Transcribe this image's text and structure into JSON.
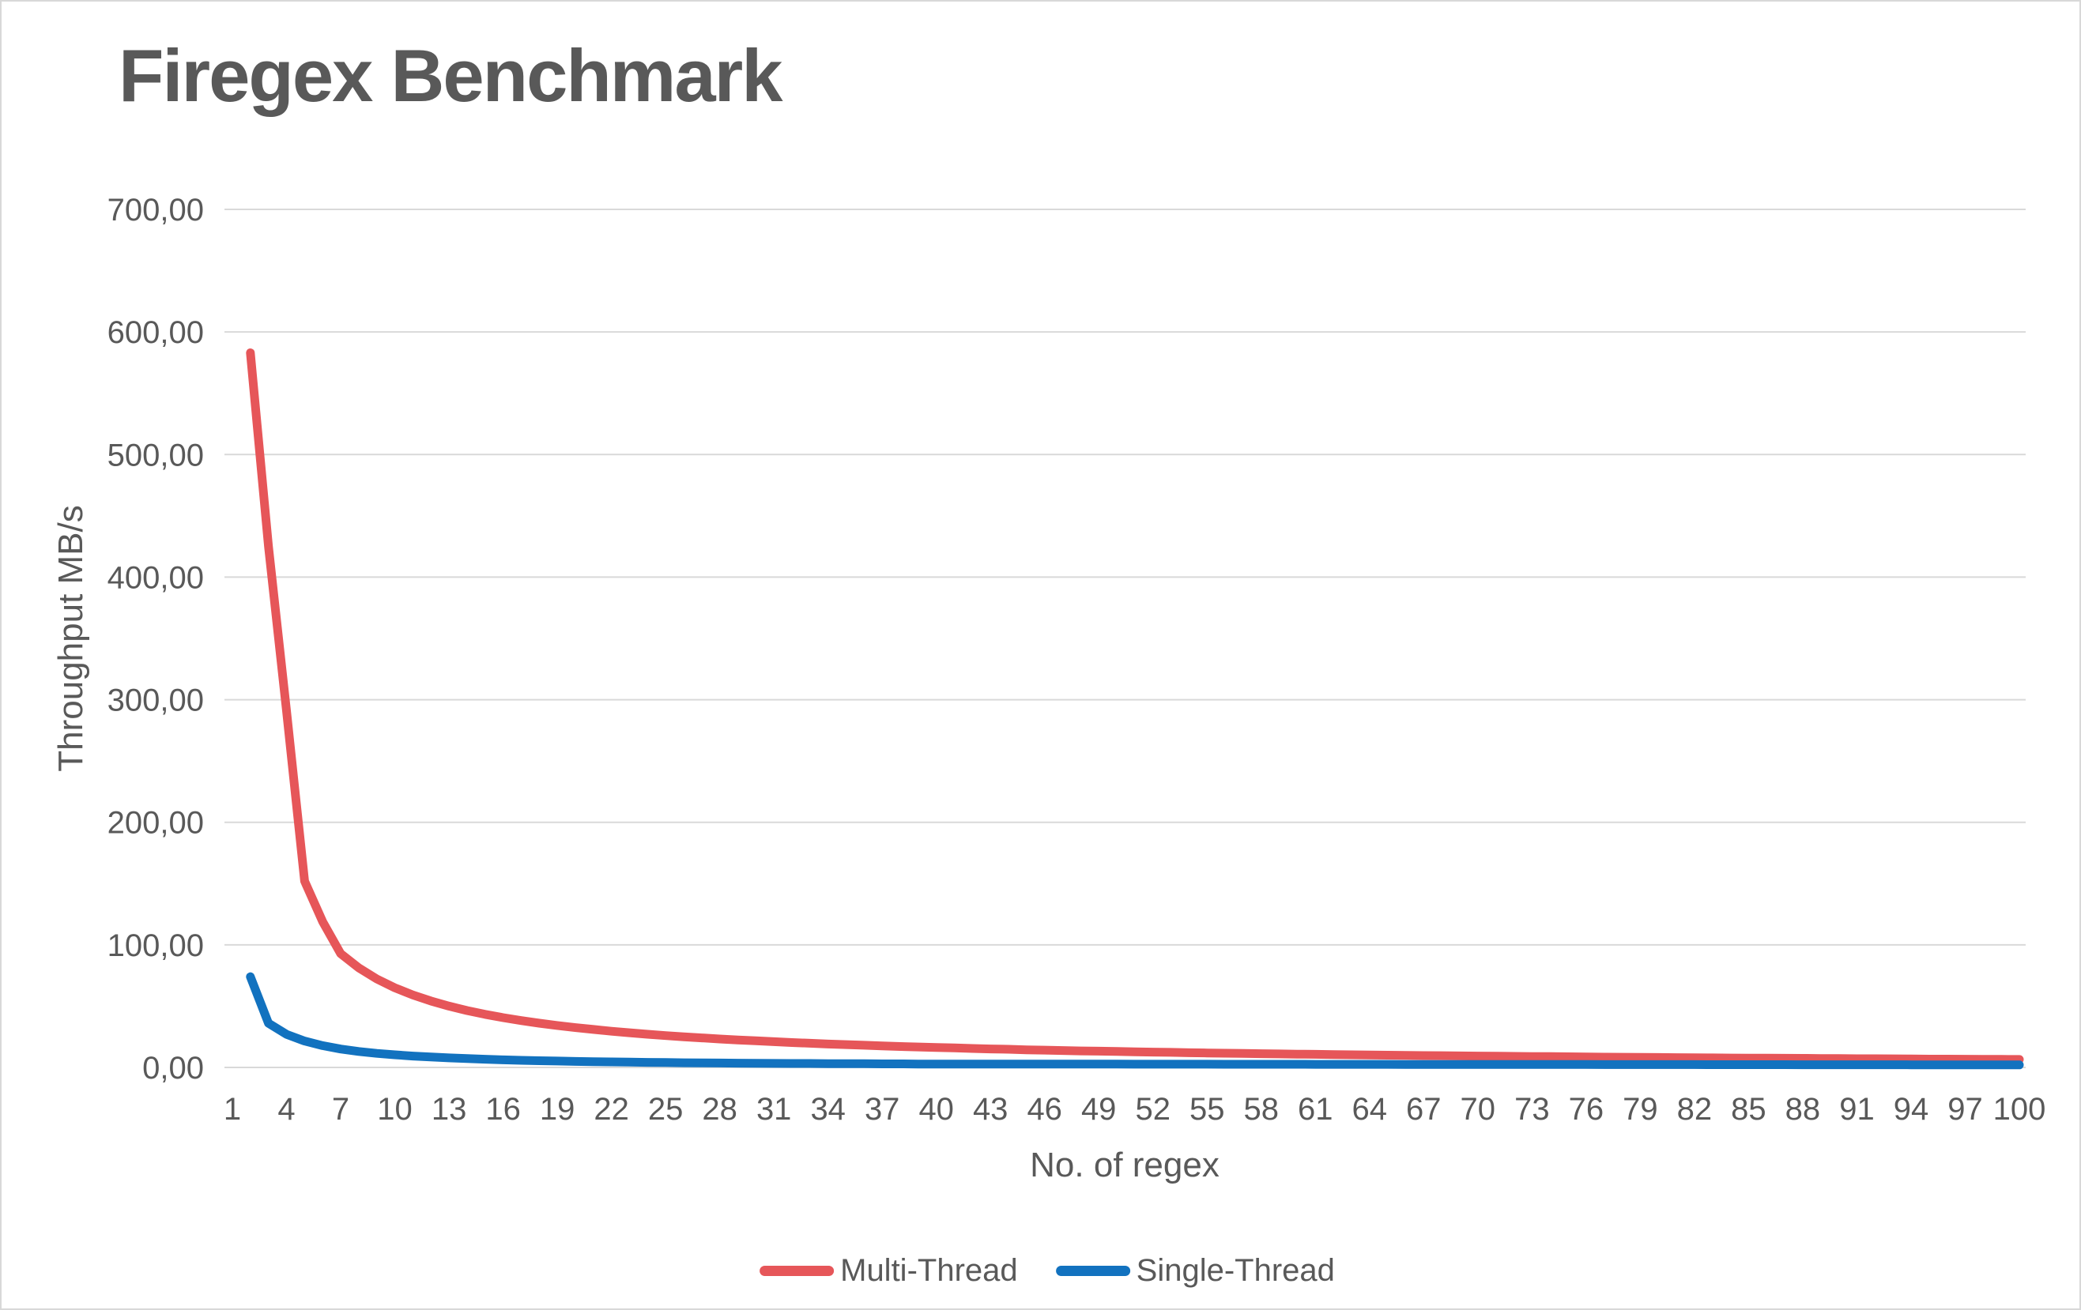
{
  "page": {
    "background": "#ffffff",
    "border_color": "#d8d8d8"
  },
  "chart_data": {
    "type": "line",
    "title": "Firegex Benchmark",
    "xlabel": "No. of regex",
    "ylabel": "Throughput MB/s",
    "xlim": [
      1,
      100
    ],
    "ylim": [
      0,
      700
    ],
    "grid": true,
    "legend_position": "bottom",
    "theme": {
      "text_color": "#595959",
      "grid_color": "#d9d9d9",
      "title_color": "#595959"
    },
    "y_tick_values": [
      0,
      100,
      200,
      300,
      400,
      500,
      600,
      700
    ],
    "y_tick_labels": [
      "0,00",
      "100,00",
      "200,00",
      "300,00",
      "400,00",
      "500,00",
      "600,00",
      "700,00"
    ],
    "x_tick_values": [
      1,
      4,
      7,
      10,
      13,
      16,
      19,
      22,
      25,
      28,
      31,
      34,
      37,
      40,
      43,
      46,
      49,
      52,
      55,
      58,
      61,
      64,
      67,
      70,
      73,
      76,
      79,
      82,
      85,
      88,
      91,
      94,
      97,
      100
    ],
    "x": [
      2,
      3,
      4,
      5,
      6,
      7,
      8,
      9,
      10,
      11,
      12,
      13,
      14,
      15,
      16,
      17,
      18,
      19,
      20,
      21,
      22,
      23,
      24,
      25,
      26,
      27,
      28,
      29,
      30,
      31,
      32,
      33,
      34,
      35,
      36,
      37,
      38,
      39,
      40,
      41,
      42,
      43,
      44,
      45,
      46,
      47,
      48,
      49,
      50,
      51,
      52,
      53,
      54,
      55,
      56,
      57,
      58,
      59,
      60,
      61,
      62,
      63,
      64,
      65,
      66,
      67,
      68,
      69,
      70,
      71,
      72,
      73,
      74,
      75,
      76,
      77,
      78,
      79,
      80,
      81,
      82,
      83,
      84,
      85,
      86,
      87,
      88,
      89,
      90,
      91,
      92,
      93,
      94,
      95,
      96,
      97,
      98,
      99,
      100
    ],
    "series": [
      {
        "name": "Multi-Thread",
        "color": "#e65659",
        "values": [
          583,
          425,
          291,
          152,
          119,
          92.9,
          81.3,
          72.2,
          65,
          59.1,
          54.2,
          50,
          46.4,
          43.3,
          40.6,
          38.2,
          36.1,
          34.2,
          32.5,
          31,
          29.5,
          28.3,
          27.1,
          26,
          25,
          24.1,
          23.2,
          22.4,
          21.7,
          21,
          20.3,
          19.7,
          19.1,
          18.6,
          18.1,
          17.6,
          17.1,
          16.7,
          16.3,
          15.9,
          15.5,
          15.1,
          14.8,
          14.4,
          14.1,
          13.8,
          13.5,
          13.3,
          13,
          12.7,
          12.5,
          12.3,
          12,
          11.8,
          11.6,
          11.4,
          11.2,
          11,
          10.8,
          10.7,
          10.5,
          10.3,
          10.2,
          10,
          9.8,
          9.7,
          9.6,
          9.4,
          9.3,
          9.2,
          9,
          8.9,
          8.8,
          8.7,
          8.6,
          8.4,
          8.3,
          8.2,
          8.1,
          8,
          7.9,
          7.8,
          7.7,
          7.6,
          7.6,
          7.5,
          7.4,
          7.3,
          7.2,
          7.1,
          7.1,
          7,
          6.9,
          6.8,
          6.8,
          6.7,
          6.6,
          6.6,
          6.5
        ]
      },
      {
        "name": "Single-Thread",
        "color": "#1272bf",
        "values": [
          74,
          36,
          27,
          21.5,
          17.8,
          15,
          13,
          11.5,
          10.3,
          9.3,
          8.5,
          7.8,
          7.2,
          6.7,
          6.2,
          5.8,
          5.5,
          5.2,
          4.9,
          4.7,
          4.5,
          4.3,
          4.1,
          4,
          3.8,
          3.7,
          3.6,
          3.5,
          3.4,
          3.3,
          3.2,
          3.2,
          3.1,
          3,
          3,
          2.9,
          2.9,
          2.8,
          2.8,
          2.79,
          2.77,
          2.76,
          2.75,
          2.74,
          2.72,
          2.71,
          2.7,
          2.69,
          2.68,
          2.66,
          2.65,
          2.64,
          2.63,
          2.62,
          2.6,
          2.59,
          2.58,
          2.57,
          2.56,
          2.54,
          2.53,
          2.52,
          2.51,
          2.5,
          2.48,
          2.47,
          2.46,
          2.45,
          2.44,
          2.42,
          2.41,
          2.4,
          2.39,
          2.38,
          2.36,
          2.35,
          2.34,
          2.33,
          2.32,
          2.3,
          2.29,
          2.28,
          2.27,
          2.26,
          2.24,
          2.23,
          2.22,
          2.21,
          2.2,
          2.18,
          2.17,
          2.16,
          2.15,
          2.14,
          2.12,
          2.11,
          2.1,
          2.09,
          2.08
        ]
      }
    ]
  }
}
